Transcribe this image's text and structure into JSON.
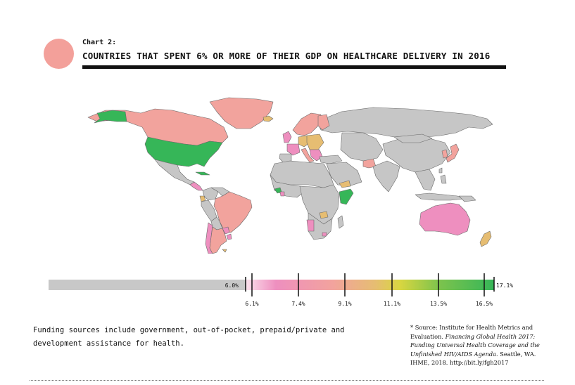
{
  "header": {
    "kicker": "Chart 2:",
    "title": "COUNTRIES THAT SPENT 6% OR MORE OF THEIR GDP ON HEALTHCARE DELIVERY IN 2016"
  },
  "colors": {
    "accent_circle": "#f3a09a",
    "no_data_gray": "#c8c8c8",
    "land_gray": "#c6c6c6",
    "pink": "#ee8fbf",
    "salmon": "#f2a39d",
    "tan": "#e6bd72",
    "yellow": "#d9d640",
    "green": "#36b658"
  },
  "legend": {
    "min_label": "6.0%",
    "max_label": "17.1%",
    "ticks": [
      "6.1%",
      "7.4%",
      "9.1%",
      "11.1%",
      "13.5%",
      "16.5%"
    ]
  },
  "footer": {
    "note": "Funding sources include government, out-of-pocket, prepaid/private and development assistance for health.",
    "source_prefix": "* Source: Institute for Health Metrics and Evaluation. ",
    "source_italic": "Financing Global Health 2017: Funding Universal Health Coverage and the Unfinished HIV/AIDS Agenda.",
    "source_suffix": " Seattle, WA. IHME, 2018. http://bit.ly/fgh2017"
  }
}
